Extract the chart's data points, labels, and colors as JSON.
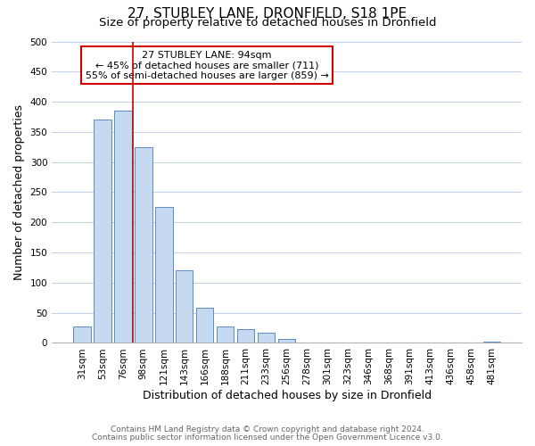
{
  "title": "27, STUBLEY LANE, DRONFIELD, S18 1PE",
  "subtitle": "Size of property relative to detached houses in Dronfield",
  "xlabel": "Distribution of detached houses by size in Dronfield",
  "ylabel": "Number of detached properties",
  "bar_labels": [
    "31sqm",
    "53sqm",
    "76sqm",
    "98sqm",
    "121sqm",
    "143sqm",
    "166sqm",
    "188sqm",
    "211sqm",
    "233sqm",
    "256sqm",
    "278sqm",
    "301sqm",
    "323sqm",
    "346sqm",
    "368sqm",
    "391sqm",
    "413sqm",
    "436sqm",
    "458sqm",
    "481sqm"
  ],
  "bar_values": [
    28,
    370,
    385,
    325,
    225,
    120,
    58,
    28,
    23,
    17,
    6,
    1,
    0,
    0,
    0,
    0,
    0,
    0,
    0,
    0,
    2
  ],
  "bar_color": "#c5d9f1",
  "bar_edge_color": "#5a8ac6",
  "vline_index": 2.5,
  "vline_color": "#cc0000",
  "annotation_title": "27 STUBLEY LANE: 94sqm",
  "annotation_line1": "← 45% of detached houses are smaller (711)",
  "annotation_line2": "55% of semi-detached houses are larger (859) →",
  "annotation_box_color": "#ffffff",
  "annotation_box_edge": "#cc0000",
  "ylim": [
    0,
    500
  ],
  "yticks": [
    0,
    50,
    100,
    150,
    200,
    250,
    300,
    350,
    400,
    450,
    500
  ],
  "footnote1": "Contains HM Land Registry data © Crown copyright and database right 2024.",
  "footnote2": "Contains public sector information licensed under the Open Government Licence v3.0.",
  "background_color": "#ffffff",
  "grid_color": "#c0d0e8",
  "title_fontsize": 11,
  "subtitle_fontsize": 9.5,
  "axis_label_fontsize": 9,
  "tick_fontsize": 7.5,
  "footnote_fontsize": 6.5,
  "annotation_fontsize": 8
}
